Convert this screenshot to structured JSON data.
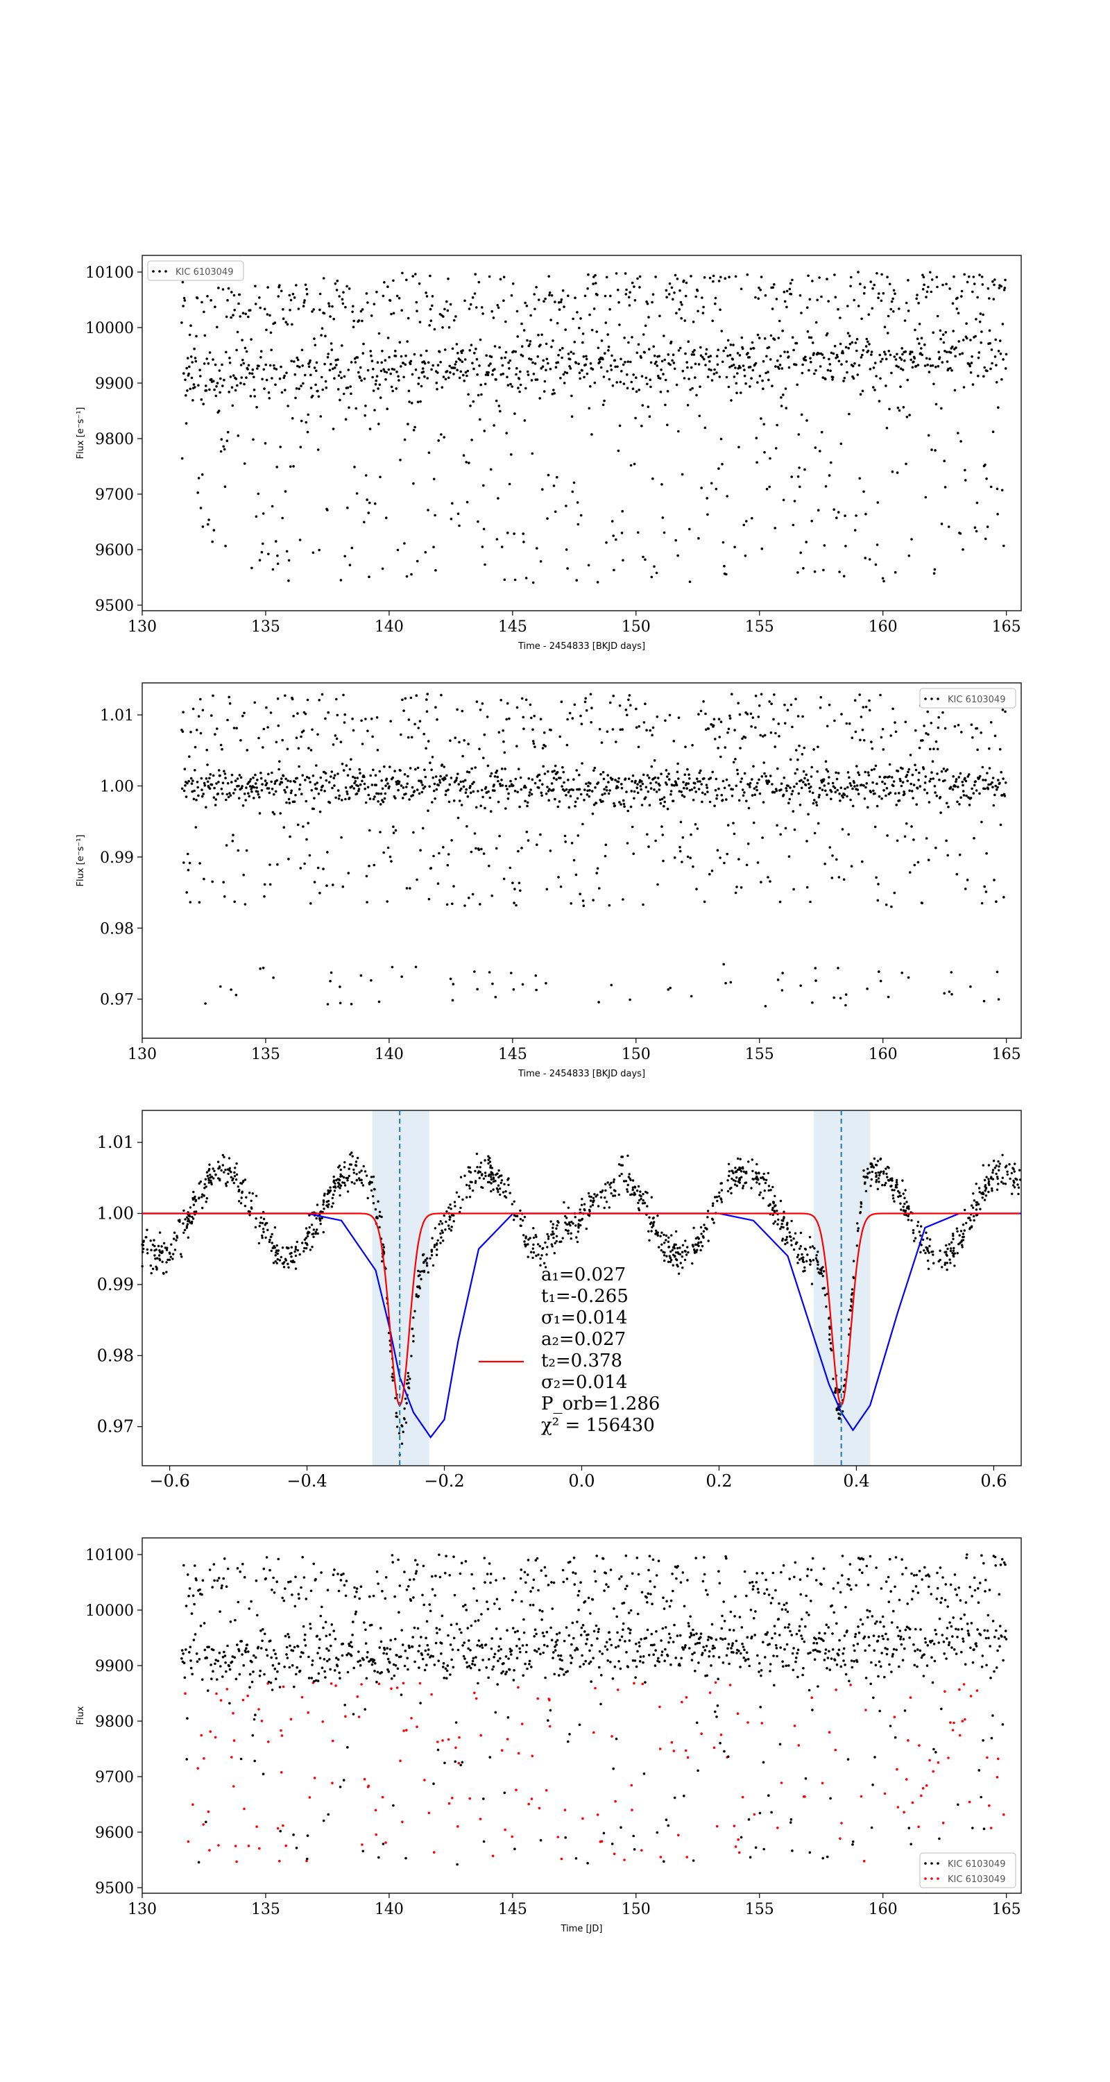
{
  "figure": {
    "panels": [
      {
        "xlabel": "Time - 2454833 [BKJD days]",
        "ylabel": "Flux [e⁻s⁻¹]",
        "legend": [
          "KIC 6103049"
        ]
      },
      {
        "xlabel": "Time - 2454833 [BKJD days]",
        "ylabel": "Flux [e⁻s⁻¹]",
        "legend": [
          "KIC 6103049"
        ]
      },
      {
        "fit_labels": [
          "a₁=0.027",
          "t₁=-0.265",
          "σ₁=0.014",
          "a₂=0.027",
          "t₂=0.378",
          "σ₂=0.014",
          "P_orb=1.286",
          "χ² = 156430"
        ]
      },
      {
        "xlabel": "Time [JD]",
        "ylabel": "Flux",
        "legend": [
          "KIC 6103049",
          "KIC 6103049"
        ]
      }
    ]
  },
  "chart_data": [
    {
      "type": "scatter",
      "title": "",
      "xlabel": "Time - 2454833 [BKJD days]",
      "ylabel": "Flux [e⁻s⁻¹]",
      "xlim": [
        130,
        165.6
      ],
      "ylim": [
        9490,
        10130
      ],
      "xticks": [
        "130",
        "135",
        "140",
        "145",
        "150",
        "155",
        "160",
        "165"
      ],
      "yticks": [
        "9500",
        "9600",
        "9700",
        "9800",
        "9900",
        "10000",
        "10100"
      ],
      "legend_position": "upper-left",
      "series": [
        {
          "name": "KIC 6103049",
          "color": "#000000",
          "x_range": [
            131.6,
            165.0
          ],
          "cadence_days": 0.0204,
          "envelope": {
            "upper_flux": 10080,
            "lower_flux": 9530,
            "out_of_eclipse_flux": 9910
          },
          "period_days": 1.286
        }
      ]
    },
    {
      "type": "scatter",
      "title": "",
      "xlabel": "Time - 2454833 [BKJD days]",
      "ylabel": "Flux [e⁻s⁻¹]",
      "xlim": [
        130,
        165.6
      ],
      "ylim": [
        0.9645,
        1.0145
      ],
      "xticks": [
        "130",
        "135",
        "140",
        "145",
        "150",
        "155",
        "160",
        "165"
      ],
      "yticks": [
        "0.97",
        "0.98",
        "0.99",
        "1.00",
        "1.01"
      ],
      "legend_position": "upper-right",
      "series": [
        {
          "name": "KIC 6103049",
          "color": "#000000",
          "x_range": [
            131.6,
            165.0
          ],
          "period_days": 1.286,
          "normalized_flux_range": [
            0.968,
            1.014
          ]
        }
      ]
    },
    {
      "type": "line",
      "title": "",
      "xlabel": "",
      "ylabel": "",
      "xlim": [
        -0.64,
        0.64
      ],
      "ylim": [
        0.9645,
        1.0145
      ],
      "xticks": [
        "−0.6",
        "−0.4",
        "−0.2",
        "0.0",
        "0.2",
        "0.4",
        "0.6"
      ],
      "yticks": [
        "0.97",
        "0.98",
        "0.99",
        "1.00",
        "1.01"
      ],
      "series": [
        {
          "kind": "folded-data",
          "color": "#000000",
          "marker": "dot"
        },
        {
          "kind": "binned-curve",
          "color": "#0000ff",
          "x": [
            -0.64,
            -0.6,
            -0.5,
            -0.45,
            -0.4,
            -0.35,
            -0.3,
            -0.28,
            -0.265,
            -0.245,
            -0.22,
            -0.2,
            -0.18,
            -0.15,
            -0.1,
            -0.05,
            0.0,
            0.05,
            0.1,
            0.15,
            0.2,
            0.25,
            0.3,
            0.33,
            0.36,
            0.378,
            0.395,
            0.42,
            0.46,
            0.5,
            0.55,
            0.6,
            0.64
          ],
          "y": [
            1.0,
            1.0,
            1.0,
            1.0,
            1.0,
            0.999,
            0.992,
            0.984,
            0.977,
            0.972,
            0.9685,
            0.971,
            0.982,
            0.995,
            1.0,
            1.0,
            1.0,
            1.0,
            1.0,
            1.0,
            1.0,
            0.999,
            0.994,
            0.985,
            0.976,
            0.972,
            0.9695,
            0.973,
            0.986,
            0.998,
            1.0,
            1.0,
            1.0
          ]
        },
        {
          "kind": "two-gaussian-model",
          "color": "#ff0000",
          "a1": 0.027,
          "t1": -0.265,
          "sigma1": 0.014,
          "a2": 0.027,
          "t2": 0.378,
          "sigma2": 0.014,
          "baseline": 1.0
        }
      ],
      "eclipse_windows": [
        [
          -0.305,
          -0.222
        ],
        [
          0.338,
          0.42
        ]
      ],
      "eclipse_centers": [
        -0.265,
        0.378
      ],
      "P_orb": 1.286,
      "chi2": 156430
    },
    {
      "type": "scatter",
      "title": "",
      "xlabel": "Time [JD]",
      "ylabel": "Flux",
      "xlim": [
        130,
        165.6
      ],
      "ylim": [
        9490,
        10130
      ],
      "xticks": [
        "130",
        "135",
        "140",
        "145",
        "150",
        "155",
        "160",
        "165"
      ],
      "yticks": [
        "9500",
        "9600",
        "9700",
        "9800",
        "9900",
        "10000",
        "10100"
      ],
      "legend_position": "lower-right",
      "series": [
        {
          "name": "KIC 6103049",
          "color": "#000000"
        },
        {
          "name": "KIC 6103049",
          "color": "#ff0000"
        }
      ]
    }
  ]
}
